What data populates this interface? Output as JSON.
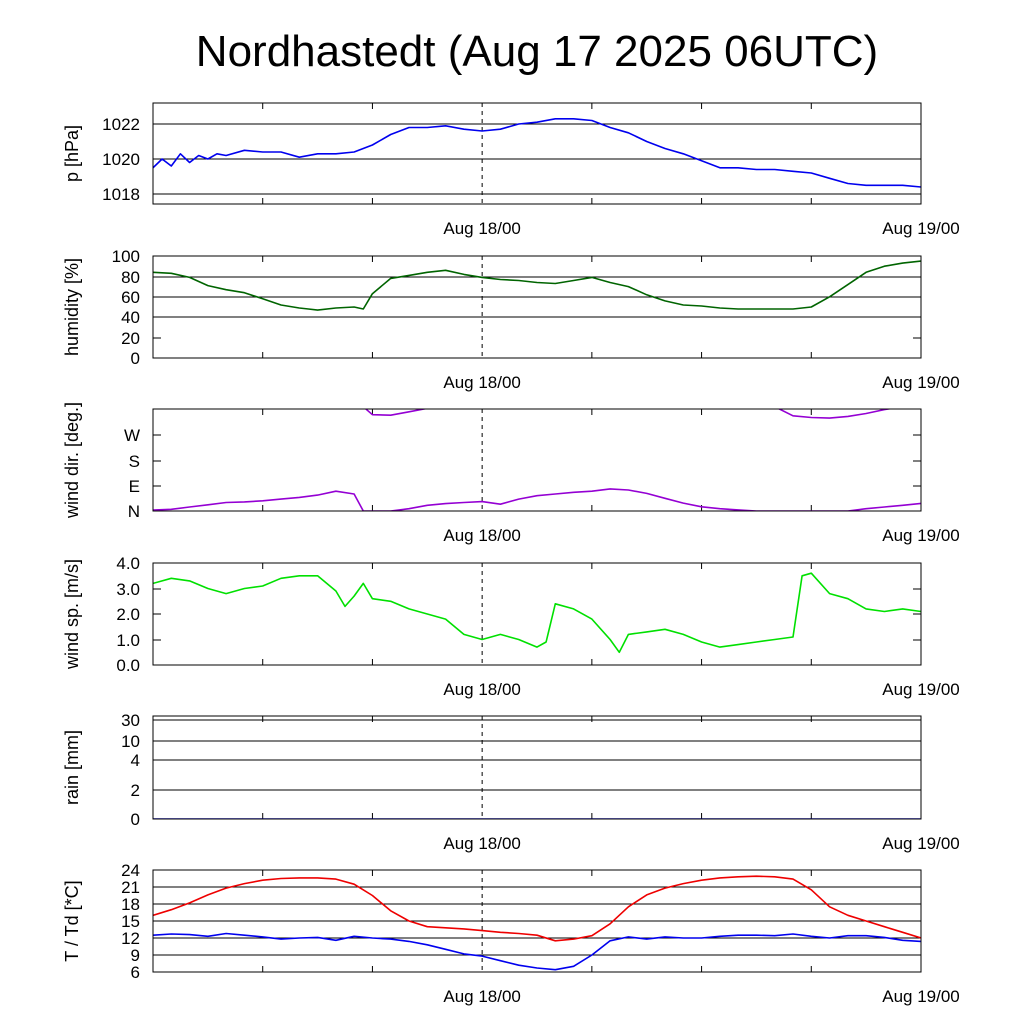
{
  "title": "Nordhastedt (Aug 17 2025 06UTC)",
  "x_tick_labels": [
    "Aug 18/00",
    "Aug 19/00"
  ],
  "chart_data": [
    {
      "type": "line",
      "ylabel": "p [hPa]",
      "y_ticks": [
        "1018",
        "1020",
        "1022"
      ],
      "ylim": [
        1017.4,
        1023.2
      ],
      "x_unit": "hours since Aug 17 2025 06UTC",
      "xlim": [
        0,
        42
      ],
      "series": [
        {
          "color": "#0000ee",
          "x": [
            0,
            0.5,
            1,
            1.5,
            2,
            2.5,
            3,
            3.5,
            4,
            5,
            6,
            7,
            8,
            9,
            10,
            11,
            12,
            13,
            14,
            15,
            16,
            17,
            18,
            19,
            20,
            21,
            22,
            23,
            24,
            25,
            26,
            27,
            28,
            29,
            30,
            31,
            32,
            33,
            34,
            35,
            36,
            37,
            38,
            39,
            40,
            41,
            42
          ],
          "y": [
            1019.5,
            1020.0,
            1019.6,
            1020.3,
            1019.8,
            1020.2,
            1020.0,
            1020.3,
            1020.2,
            1020.5,
            1020.4,
            1020.4,
            1020.1,
            1020.3,
            1020.3,
            1020.4,
            1020.8,
            1021.4,
            1021.8,
            1021.8,
            1021.9,
            1021.7,
            1021.6,
            1021.7,
            1022.0,
            1022.1,
            1022.3,
            1022.3,
            1022.2,
            1021.8,
            1021.5,
            1021.0,
            1020.6,
            1020.3,
            1019.9,
            1019.5,
            1019.5,
            1019.4,
            1019.4,
            1019.3,
            1019.2,
            1018.9,
            1018.6,
            1018.5,
            1018.5,
            1018.5,
            1018.4
          ]
        }
      ]
    },
    {
      "type": "line",
      "ylabel": "humidity [%]",
      "y_ticks": [
        "0",
        "20",
        "40",
        "60",
        "80",
        "100"
      ],
      "ylim": [
        0,
        100
      ],
      "x_unit": "hours since Aug 17 2025 06UTC",
      "xlim": [
        0,
        42
      ],
      "series": [
        {
          "color": "#006400",
          "x": [
            0,
            1,
            2,
            3,
            4,
            5,
            6,
            7,
            8,
            8.5,
            9,
            10,
            11,
            11.5,
            12,
            13,
            14,
            15,
            16,
            17,
            18,
            19,
            20,
            21,
            22,
            23,
            24,
            25,
            26,
            27,
            28,
            29,
            30,
            31,
            32,
            33,
            34,
            35,
            36,
            37,
            38,
            39,
            40,
            41,
            42
          ],
          "y": [
            84,
            83,
            79,
            71,
            67,
            64,
            58,
            52,
            49,
            48,
            47,
            49,
            50,
            48,
            63,
            78,
            81,
            84,
            86,
            82,
            79,
            77,
            76,
            74,
            73,
            76,
            79,
            74,
            70,
            62,
            56,
            52,
            51,
            49,
            48,
            48,
            48,
            48,
            50,
            60,
            72,
            84,
            90,
            93,
            95
          ]
        }
      ]
    },
    {
      "type": "line",
      "ylabel": "wind dir. [deg.]",
      "y_ticks": [
        "N",
        "E",
        "S",
        "W"
      ],
      "ylim": [
        0,
        360
      ],
      "x_unit": "hours since Aug 17 2025 06UTC",
      "xlim": [
        0,
        42
      ],
      "series": [
        {
          "color": "#9400d3",
          "x": [
            0,
            1,
            2,
            3,
            4,
            5,
            6,
            7,
            8,
            9,
            10,
            11,
            11.5,
            12,
            13,
            14,
            15,
            16,
            17,
            18,
            19,
            20,
            21,
            22,
            23,
            24,
            25,
            26,
            27,
            28,
            29,
            30,
            31,
            32,
            33,
            34,
            35,
            36,
            37,
            38,
            39,
            40,
            41,
            42
          ],
          "y": [
            3,
            6,
            14,
            22,
            30,
            32,
            36,
            42,
            48,
            56,
            70,
            60,
            0,
            0,
            0,
            8,
            20,
            26,
            30,
            33,
            24,
            42,
            54,
            60,
            66,
            70,
            78,
            74,
            62,
            45,
            28,
            15,
            8,
            4,
            0,
            0,
            0,
            0,
            0,
            0,
            8,
            14,
            20,
            27
          ]
        },
        {
          "color": "#9400d3",
          "x": [
            11.5,
            12,
            13,
            14,
            15
          ],
          "y": [
            368,
            340,
            338,
            350,
            362
          ]
        },
        {
          "color": "#9400d3",
          "x": [
            34,
            35,
            36,
            37,
            38,
            39,
            40,
            41
          ],
          "y": [
            368,
            336,
            330,
            328,
            334,
            344,
            358,
            368
          ]
        }
      ]
    },
    {
      "type": "line",
      "ylabel": "wind sp. [m/s]",
      "y_ticks": [
        "0.0",
        "1.0",
        "2.0",
        "3.0",
        "4.0"
      ],
      "ylim": [
        0,
        4
      ],
      "x_unit": "hours since Aug 17 2025 06UTC",
      "xlim": [
        0,
        42
      ],
      "series": [
        {
          "color": "#00e000",
          "x": [
            0,
            1,
            2,
            3,
            4,
            5,
            6,
            7,
            8,
            9,
            10,
            10.5,
            11,
            11.5,
            12,
            13,
            14,
            15,
            16,
            17,
            18,
            19,
            20,
            21,
            21.5,
            22,
            23,
            24,
            25,
            25.5,
            26,
            27,
            28,
            29,
            30,
            31,
            32,
            33,
            34,
            35,
            35.5,
            36,
            37,
            38,
            39,
            40,
            41,
            42
          ],
          "y": [
            3.2,
            3.4,
            3.3,
            3.0,
            2.8,
            3.0,
            3.1,
            3.4,
            3.5,
            3.5,
            2.9,
            2.3,
            2.7,
            3.2,
            2.6,
            2.5,
            2.2,
            2.0,
            1.8,
            1.2,
            1.0,
            1.2,
            1.0,
            0.7,
            0.9,
            2.4,
            2.2,
            1.8,
            1.0,
            0.5,
            1.2,
            1.3,
            1.4,
            1.2,
            0.9,
            0.7,
            0.8,
            0.9,
            1.0,
            1.1,
            3.5,
            3.6,
            2.8,
            2.6,
            2.2,
            2.1,
            2.2,
            2.1
          ]
        }
      ]
    },
    {
      "type": "line",
      "ylabel": "rain [mm]",
      "y_ticks": [
        "0",
        "2",
        "4",
        "10",
        "30"
      ],
      "ylim": [
        0,
        30
      ],
      "x_unit": "hours since Aug 17 2025 06UTC",
      "xlim": [
        0,
        42
      ],
      "series": [
        {
          "color": "#0000ee",
          "x": [
            0,
            42
          ],
          "y": [
            0,
            0
          ]
        }
      ]
    },
    {
      "type": "line",
      "ylabel": "T / Td [*C]",
      "y_ticks": [
        "6",
        "9",
        "12",
        "15",
        "18",
        "21",
        "24"
      ],
      "ylim": [
        6,
        24
      ],
      "x_unit": "hours since Aug 17 2025 06UTC",
      "xlim": [
        0,
        42
      ],
      "series": [
        {
          "color": "#ee0000",
          "x": [
            0,
            1,
            2,
            3,
            4,
            5,
            6,
            7,
            8,
            9,
            10,
            11,
            12,
            13,
            14,
            15,
            16,
            17,
            18,
            19,
            20,
            21,
            22,
            23,
            24,
            25,
            26,
            27,
            28,
            29,
            30,
            31,
            32,
            33,
            34,
            35,
            36,
            37,
            38,
            39,
            40,
            41,
            42
          ],
          "y": [
            16.0,
            17.0,
            18.2,
            19.6,
            20.8,
            21.6,
            22.2,
            22.5,
            22.6,
            22.6,
            22.4,
            21.5,
            19.5,
            16.8,
            15.0,
            14.0,
            13.8,
            13.6,
            13.3,
            13.0,
            12.8,
            12.5,
            11.5,
            11.8,
            12.4,
            14.5,
            17.5,
            19.6,
            20.8,
            21.6,
            22.2,
            22.6,
            22.8,
            22.9,
            22.8,
            22.4,
            20.5,
            17.5,
            16.0,
            15.0,
            14.0,
            13.0,
            12.0
          ]
        },
        {
          "color": "#0000ee",
          "x": [
            0,
            1,
            2,
            3,
            4,
            5,
            6,
            7,
            8,
            9,
            10,
            11,
            12,
            13,
            14,
            15,
            16,
            17,
            18,
            19,
            20,
            21,
            22,
            23,
            24,
            25,
            26,
            27,
            28,
            29,
            30,
            31,
            32,
            33,
            34,
            35,
            36,
            37,
            38,
            39,
            40,
            41,
            42
          ],
          "y": [
            12.5,
            12.7,
            12.6,
            12.3,
            12.8,
            12.5,
            12.2,
            11.8,
            12.0,
            12.1,
            11.6,
            12.3,
            12.0,
            11.8,
            11.4,
            10.8,
            10.0,
            9.2,
            8.8,
            8.0,
            7.2,
            6.7,
            6.4,
            7.0,
            9.0,
            11.5,
            12.2,
            11.8,
            12.2,
            12.0,
            12.0,
            12.3,
            12.5,
            12.5,
            12.4,
            12.7,
            12.3,
            12.0,
            12.4,
            12.4,
            12.1,
            11.6,
            11.4
          ]
        }
      ]
    }
  ]
}
